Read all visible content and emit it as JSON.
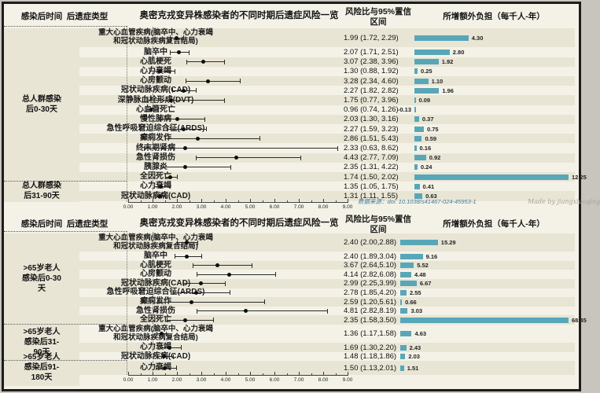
{
  "page": {
    "source_note": "数据来源：doi: 10.1038/s41467-024-45953-1",
    "watermark": "Made by jiangxiaoqing"
  },
  "headers": {
    "time": "感染后时间",
    "type": "后遗症类型",
    "plot_title": "奥密克戎变异株感染者的不同时期后遗症风险一览",
    "hr": "风险比与95%置信区间",
    "burden": "所增额外负担（每千人-年）"
  },
  "colors": {
    "bar": "#57a7b8",
    "stripe": "#e9e5d5",
    "marker": "#0e0e0e",
    "source_text": "#3f7d9e"
  },
  "chart_data": [
    {
      "type": "forest",
      "title": "奥密克戎变异株感染者的不同时期后遗症风险一览",
      "x_axis": {
        "min": 0,
        "max": 9,
        "ref_line": 1.0,
        "ticks": [
          "0.00",
          "1.00",
          "2.00",
          "3.00",
          "4.00",
          "5.00",
          "6.00",
          "7.00",
          "8.00",
          "9.00"
        ]
      },
      "burden_axis_max": 12.25,
      "groups": [
        {
          "label": "总人群感染\n后0-30天",
          "row_start": 0,
          "row_end": 14
        },
        {
          "label": "总人群感染\n后31-90天",
          "row_start": 15,
          "row_end": 16
        }
      ],
      "rows": [
        {
          "outcome": "重大心血管疾病(脑卒中、心力衰竭和冠状动脉疾病复合结局)",
          "units": 2,
          "hr": 1.99,
          "ci": [
            1.72,
            2.29
          ],
          "hr_ci_text": "1.99 (1.72, 2.29)",
          "burden": 4.3,
          "burden_text": "4.30"
        },
        {
          "outcome": "脑卒中",
          "hr": 2.07,
          "ci": [
            1.71,
            2.51
          ],
          "hr_ci_text": "2.07 (1.71, 2.51)",
          "burden": 2.8,
          "burden_text": "2.80"
        },
        {
          "outcome": "心肌梗死",
          "hr": 3.07,
          "ci": [
            2.38,
            3.96
          ],
          "hr_ci_text": "3.07 (2.38, 3.96)",
          "burden": 1.92,
          "burden_text": "1.92"
        },
        {
          "outcome": "心力衰竭",
          "hr": 1.3,
          "ci": [
            0.88,
            1.92
          ],
          "hr_ci_text": "1.30 (0.88, 1.92)",
          "burden": 0.25,
          "burden_text": "0.25"
        },
        {
          "outcome": "心房颤动",
          "hr": 3.28,
          "ci": [
            2.34,
            4.6
          ],
          "hr_ci_text": "3.28 (2.34, 4.60)",
          "burden": 1.1,
          "burden_text": "1.10"
        },
        {
          "outcome": "冠状动脉疾病(CAD)",
          "hr": 2.27,
          "ci": [
            1.82,
            2.82
          ],
          "hr_ci_text": "2.27 (1.82, 2.82)",
          "burden": 1.96,
          "burden_text": "1.96"
        },
        {
          "outcome": "深静脉血栓形成(DVT)",
          "hr": 1.75,
          "ci": [
            0.77,
            3.96
          ],
          "hr_ci_text": "1.75 (0.77, 3.96)",
          "burden": 0.09,
          "burden_text": "0.09"
        },
        {
          "outcome": "心血管死亡",
          "hr": 0.96,
          "ci": [
            0.74,
            1.26
          ],
          "hr_ci_text": "0.96 (0.74, 1.26)",
          "burden": -0.13,
          "burden_text": "-0.13"
        },
        {
          "outcome": "慢性肺病",
          "hr": 2.03,
          "ci": [
            1.3,
            3.16
          ],
          "hr_ci_text": "2.03 (1.30, 3.16)",
          "burden": 0.37,
          "burden_text": "0.37"
        },
        {
          "outcome": "急性呼吸窘迫综合征(ARDS)",
          "hr": 2.27,
          "ci": [
            1.59,
            3.23
          ],
          "hr_ci_text": "2.27 (1.59, 3.23)",
          "burden": 0.75,
          "burden_text": "0.75"
        },
        {
          "outcome": "癫痫发作",
          "hr": 2.86,
          "ci": [
            1.51,
            5.43
          ],
          "hr_ci_text": "2.86 (1.51, 5.43)",
          "burden": 0.59,
          "burden_text": "0.59"
        },
        {
          "outcome": "终末期肾病",
          "hr": 2.33,
          "ci": [
            0.63,
            8.62
          ],
          "hr_ci_text": "2.33 (0.63, 8.62)",
          "burden": 0.16,
          "burden_text": "0.16"
        },
        {
          "outcome": "急性肾损伤",
          "hr": 4.43,
          "ci": [
            2.77,
            7.09
          ],
          "hr_ci_text": "4.43 (2.77, 7.09)",
          "burden": 0.92,
          "burden_text": "0.92"
        },
        {
          "outcome": "胰腺炎",
          "hr": 2.35,
          "ci": [
            1.31,
            4.22
          ],
          "hr_ci_text": "2.35 (1.31, 4.22)",
          "burden": 0.24,
          "burden_text": "0.24"
        },
        {
          "outcome": "全因死亡",
          "hr": 1.74,
          "ci": [
            1.5,
            2.02
          ],
          "hr_ci_text": "1.74 (1.50, 2.02)",
          "burden": 12.25,
          "burden_text": "12.25"
        },
        {
          "outcome": "心力衰竭",
          "hr": 1.35,
          "ci": [
            1.05,
            1.75
          ],
          "hr_ci_text": "1.35 (1.05, 1.75)",
          "burden": 0.41,
          "burden_text": "0.41"
        },
        {
          "outcome": "冠状动脉疾病(CAD)",
          "hr": 1.31,
          "ci": [
            1.11,
            1.55
          ],
          "hr_ci_text": "1.31 (1.11, 1.55)",
          "burden": 0.63,
          "burden_text": "0.63"
        }
      ]
    },
    {
      "type": "forest",
      "title": "奥密克戎变异株感染者的不同时期后遗症风险一览",
      "x_axis": {
        "min": 0,
        "max": 9,
        "ref_line": 1.0,
        "ticks": [
          "0.00",
          "1.00",
          "2.00",
          "3.00",
          "4.00",
          "5.00",
          "6.00",
          "7.00",
          "8.00",
          "9.00"
        ]
      },
      "burden_axis_max": 68.45,
      "groups": [
        {
          "label": ">65岁老人\n感染后0-30\n天",
          "row_start": 0,
          "row_end": 8
        },
        {
          "label": ">65岁老人\n感染后31-\n90天",
          "row_start": 9,
          "row_end": 11
        },
        {
          "label": ">65岁老人\n感染后91-\n180天",
          "row_start": 12,
          "row_end": 12
        }
      ],
      "rows": [
        {
          "outcome": "重大心血管疾病(脑卒中、心力衰竭和冠状动脉疾病复合结局)",
          "units": 2,
          "hr": 2.4,
          "ci": [
            2.0,
            2.88
          ],
          "hr_ci_text": "2.40 (2.00,2.88)",
          "burden": 15.29,
          "burden_text": "15.29"
        },
        {
          "outcome": "脑卒中",
          "hr": 2.4,
          "ci": [
            1.89,
            3.04
          ],
          "hr_ci_text": "2.40 (1.89,3.04)",
          "burden": 9.16,
          "burden_text": "9.16"
        },
        {
          "outcome": "心肌梗死",
          "hr": 3.67,
          "ci": [
            2.64,
            5.1
          ],
          "hr_ci_text": "3.67 (2.64,5.10)",
          "burden": 5.52,
          "burden_text": "5.52"
        },
        {
          "outcome": "心房颤动",
          "hr": 4.14,
          "ci": [
            2.82,
            6.08
          ],
          "hr_ci_text": "4.14 (2.82,6.08)",
          "burden": 4.48,
          "burden_text": "4.48"
        },
        {
          "outcome": "冠状动脉疾病(CAD)",
          "hr": 2.99,
          "ci": [
            2.25,
            3.99
          ],
          "hr_ci_text": "2.99 (2.25,3.99)",
          "burden": 6.67,
          "burden_text": "6.67"
        },
        {
          "outcome": "急性呼吸窘迫综合征(ARDS)",
          "hr": 2.78,
          "ci": [
            1.85,
            4.2
          ],
          "hr_ci_text": "2.78 (1.85,4.20)",
          "burden": 2.55,
          "burden_text": "2.55"
        },
        {
          "outcome": "癫痫发作",
          "hr": 2.59,
          "ci": [
            1.2,
            5.61
          ],
          "hr_ci_text": "2.59 (1.20,5.61)",
          "burden": 0.66,
          "burden_text": "0.66"
        },
        {
          "outcome": "急性肾损伤",
          "hr": 4.81,
          "ci": [
            2.82,
            8.19
          ],
          "hr_ci_text": "4.81 (2.82,8.19)",
          "burden": 3.03,
          "burden_text": "3.03"
        },
        {
          "outcome": "全因死亡",
          "hr": 2.35,
          "ci": [
            1.58,
            3.5
          ],
          "hr_ci_text": "2.35 (1.58,3.50)",
          "burden": 68.45,
          "burden_text": "68.45"
        },
        {
          "outcome": "重大心血管疾病(脑卒中、心力衰竭和冠状动脉疾病复合结局)",
          "units": 2,
          "hr": 1.36,
          "ci": [
            1.17,
            1.58
          ],
          "hr_ci_text": "1.36 (1.17,1.58)",
          "burden": 4.63,
          "burden_text": "4.63"
        },
        {
          "outcome": "心力衰竭",
          "hr": 1.69,
          "ci": [
            1.3,
            2.2
          ],
          "hr_ci_text": "1.69 (1.30,2.20)",
          "burden": 2.43,
          "burden_text": "2.43"
        },
        {
          "outcome": "冠状动脉疾病(CAD)",
          "hr": 1.48,
          "ci": [
            1.18,
            1.86
          ],
          "hr_ci_text": "1.48 (1.18,1.86)",
          "burden": 2.03,
          "burden_text": "2.03"
        },
        {
          "outcome": "心力衰竭",
          "units": 1.5,
          "hr": 1.5,
          "ci": [
            1.13,
            2.01
          ],
          "hr_ci_text": "1.50 (1.13,2.01)",
          "burden": 1.51,
          "burden_text": "1.51"
        }
      ]
    }
  ]
}
